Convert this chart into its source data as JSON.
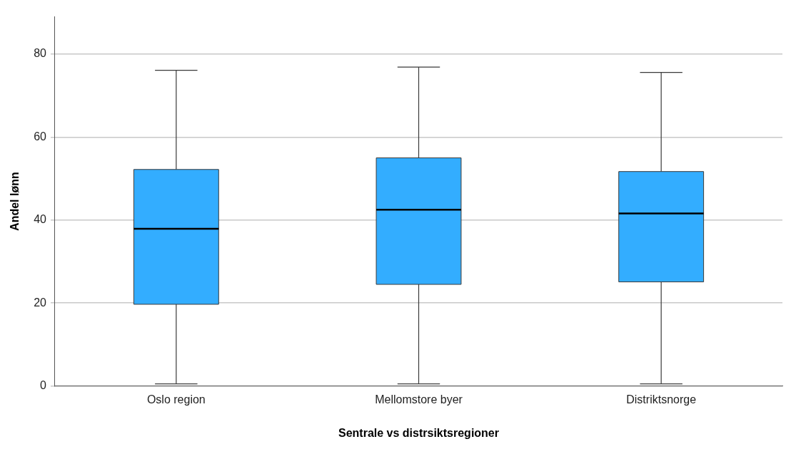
{
  "chart_data": {
    "type": "box",
    "xlabel": "Sentrale vs distrsiktsregioner",
    "ylabel": "Andel lønn",
    "categories": [
      "Oslo region",
      "Mellomstore byer",
      "Distriktsnorge"
    ],
    "color": "#33adff",
    "ylim": [
      0,
      89
    ],
    "yticks": [
      0,
      20,
      40,
      60,
      80
    ],
    "grid": "y",
    "legend": false,
    "boxes": [
      {
        "low": 0.5,
        "q1": 19.7,
        "median": 37.9,
        "q3": 52.2,
        "high": 76.1
      },
      {
        "low": 0.5,
        "q1": 24.5,
        "median": 42.5,
        "q3": 55.0,
        "high": 76.9
      },
      {
        "low": 0.5,
        "q1": 25.1,
        "median": 41.6,
        "q3": 51.7,
        "high": 75.6
      }
    ]
  }
}
